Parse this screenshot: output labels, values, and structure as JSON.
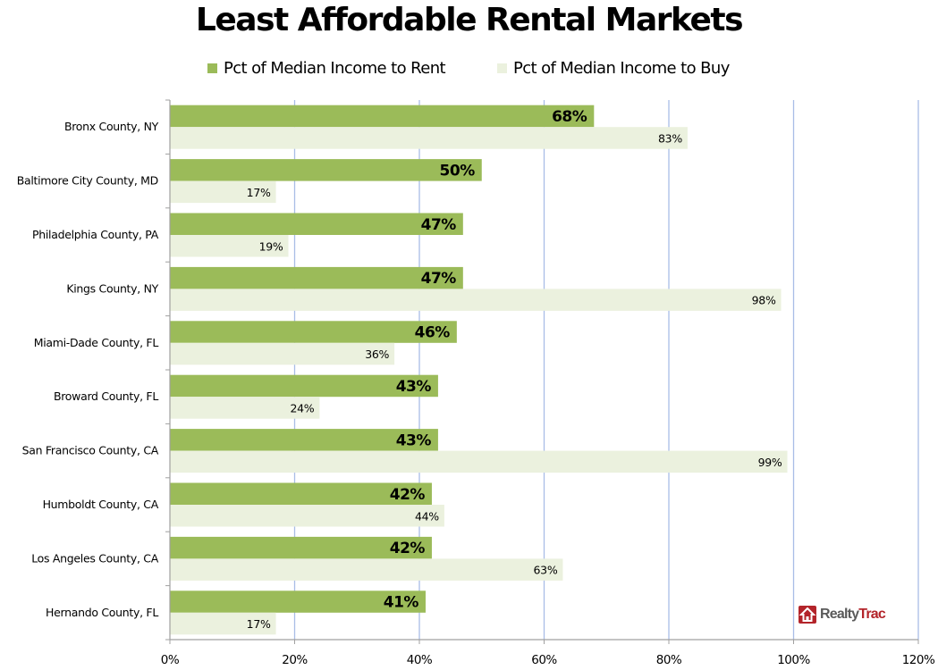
{
  "colors": {
    "rent": "#9bbb59",
    "buy": "#ebf1de",
    "gridline": "#a9bde6",
    "axis": "#a0a0a0",
    "logo_red": "#b3242a",
    "logo_gray": "#5a5a5a"
  },
  "logo": {
    "part1": "Realty",
    "part2": "Trac",
    "icon": "house-icon"
  },
  "chart_data": {
    "type": "bar",
    "orientation": "horizontal",
    "title": "Least Affordable Rental Markets",
    "xlabel": "",
    "ylabel": "",
    "xlim": [
      0,
      120
    ],
    "x_ticks": [
      "0%",
      "20%",
      "40%",
      "60%",
      "80%",
      "100%",
      "120%"
    ],
    "x_tick_values": [
      0,
      20,
      40,
      60,
      80,
      100,
      120
    ],
    "grid": "vertical",
    "legend_position": "top",
    "categories": [
      "Bronx County, NY",
      "Baltimore City County, MD",
      "Philadelphia County, PA",
      "Kings County, NY",
      "Miami-Dade County, FL",
      "Broward County, FL",
      "San Francisco County, CA",
      "Humboldt County, CA",
      "Los Angeles County, CA",
      "Hernando County, FL"
    ],
    "series": [
      {
        "name": "Pct of Median Income to Rent",
        "values": [
          68,
          50,
          47,
          47,
          46,
          43,
          43,
          42,
          42,
          41
        ],
        "labels": [
          "68%",
          "50%",
          "47%",
          "47%",
          "46%",
          "43%",
          "43%",
          "42%",
          "42%",
          "41%"
        ]
      },
      {
        "name": "Pct of Median Income to Buy",
        "values": [
          83,
          17,
          19,
          98,
          36,
          24,
          99,
          44,
          63,
          17
        ],
        "labels": [
          "83%",
          "17%",
          "19%",
          "98%",
          "36%",
          "24%",
          "99%",
          "44%",
          "63%",
          "17%"
        ]
      }
    ]
  }
}
